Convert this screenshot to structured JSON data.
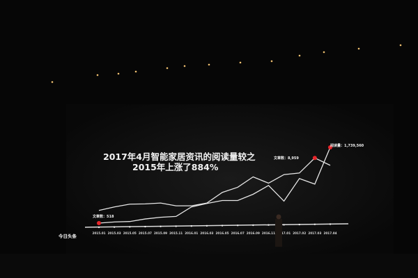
{
  "slide": {
    "title_line1": "2017年4月智能家居资讯的阅读量较之",
    "title_line2": "2015年上涨了884%",
    "logo_text": "今日头条"
  },
  "colors": {
    "line": "#e6e6e6",
    "marker": "#e8262b",
    "background": "#060606"
  },
  "chart_data": {
    "type": "line",
    "title": "2017年4月智能家居资讯的阅读量较之 2015年上涨了884%",
    "categories": [
      "2015.01",
      "2015.03",
      "2015.05",
      "2015.07",
      "2015.09",
      "2015.11",
      "2016.01",
      "2016.03",
      "2016.05",
      "2016.07",
      "2016.09",
      "2016.11",
      "2017.01",
      "2017.02",
      "2017.03",
      "2017.04"
    ],
    "y_axis_printed": false,
    "grid": false,
    "series": [
      {
        "values": [
          20.4,
          24.8,
          28.3,
          28.6,
          29.7,
          26.2,
          26.2,
          29.7,
          43.1,
          49.6,
          62.7,
          54.8,
          65.6,
          67.6,
          86.6,
          77.3
        ],
        "highlight_index": 14
      },
      {
        "values": [
          4.4,
          5.8,
          6.4,
          9.6,
          11.7,
          12.8,
          24.8,
          29.2,
          32.9,
          32.9,
          40.8,
          51.9,
          32.1,
          60.6,
          53.6,
          100
        ],
        "highlight_index": 15
      }
    ],
    "annotations": [
      {
        "text": "文章数：518",
        "at": "2015.01"
      },
      {
        "text": "文章数：8,959",
        "at": "2017.03"
      },
      {
        "text": "阅读量：1,739,560",
        "at": "2017.04"
      }
    ]
  }
}
